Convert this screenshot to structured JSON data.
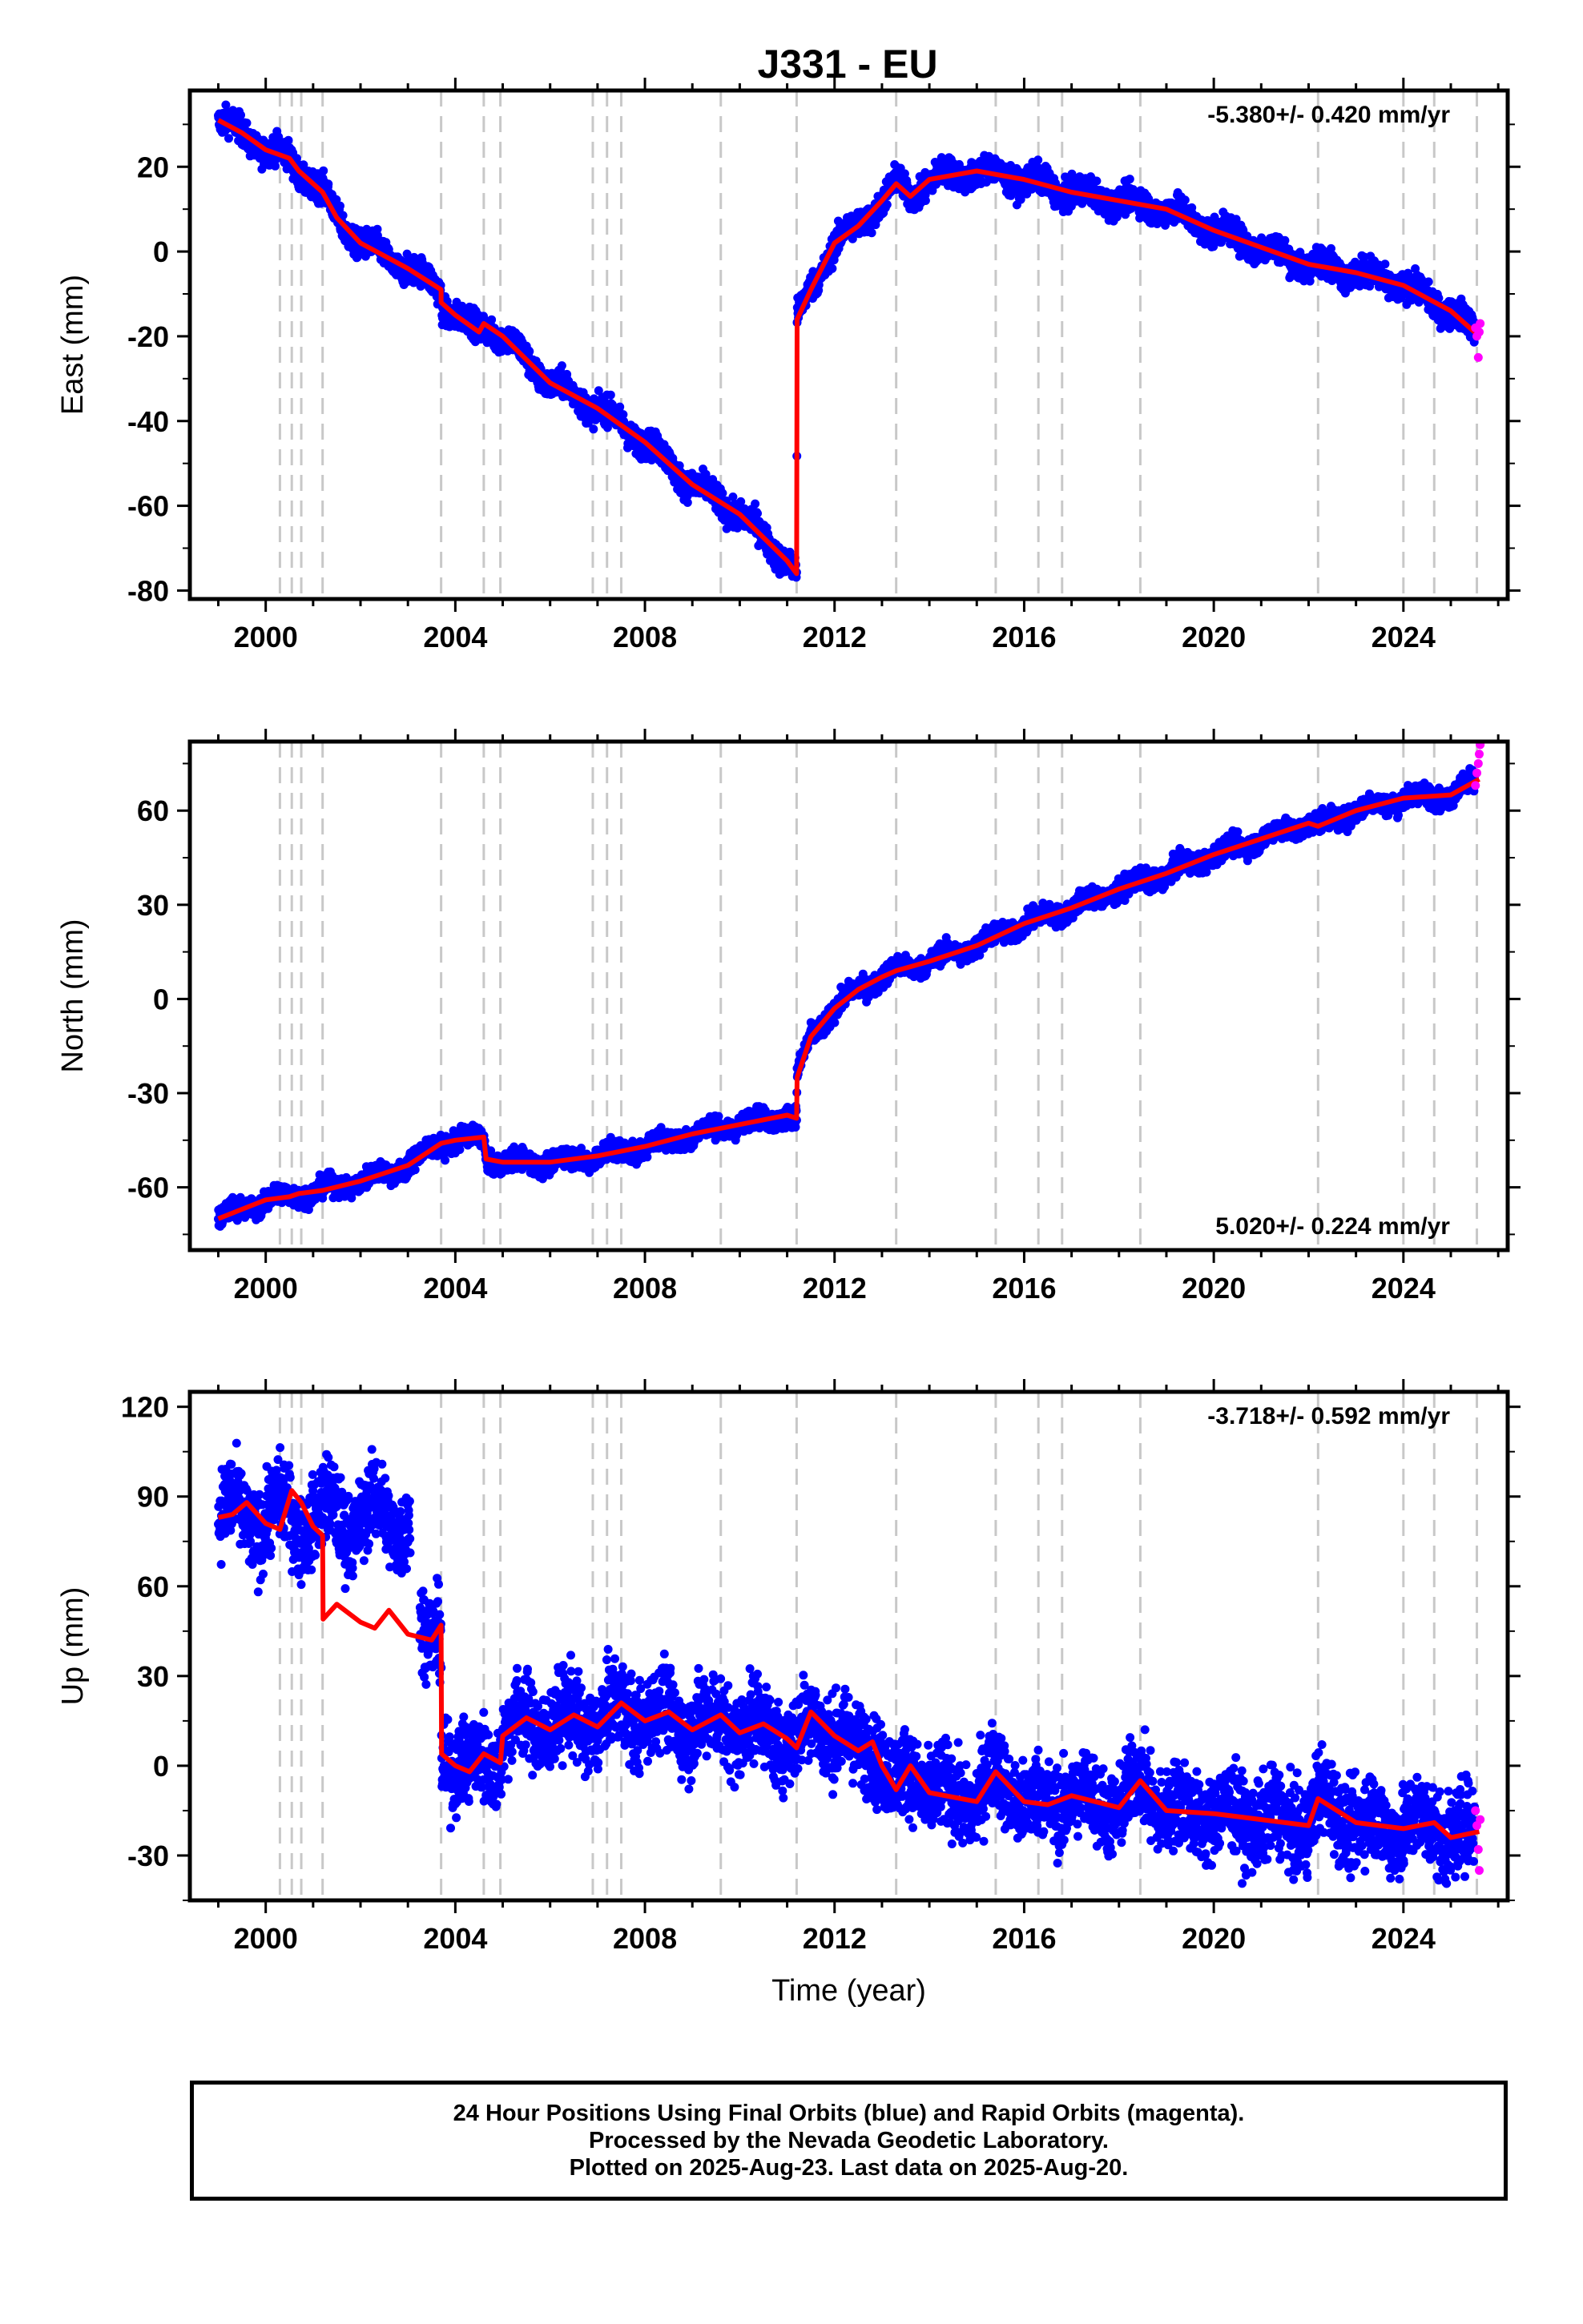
{
  "title": "J331 - EU",
  "footer": {
    "line1": "24 Hour Positions Using Final Orbits (blue) and Rapid Orbits (magenta).",
    "line2": "Processed by the Nevada Geodetic Laboratory.",
    "line3": "Plotted on 2025-Aug-23. Last data on 2025-Aug-20."
  },
  "colors": {
    "final": "#0000ff",
    "rapid": "#ff00ff",
    "model": "#ff0000",
    "event": "#c8c8c8"
  },
  "chart_data": [
    {
      "type": "scatter",
      "ylabel": "East (mm)",
      "rate_label": "-5.380+/- 0.420 mm/yr",
      "xlim": [
        1998.4,
        2026.2
      ],
      "ylim": [
        -82,
        38
      ],
      "yticks": [
        -80,
        -60,
        -40,
        -20,
        0,
        20
      ],
      "xticks": [
        2000,
        2004,
        2008,
        2012,
        2016,
        2020,
        2024
      ],
      "event_lines": [
        2000.3,
        2000.55,
        2000.75,
        2001.2,
        2003.7,
        2004.6,
        2004.95,
        2006.9,
        2007.2,
        2007.5,
        2009.6,
        2011.2,
        2013.3,
        2015.4,
        2016.3,
        2016.8,
        2018.45,
        2022.2,
        2024.0,
        2024.65,
        2025.55
      ],
      "model": [
        [
          1999.0,
          31
        ],
        [
          1999.5,
          28
        ],
        [
          2000.0,
          24
        ],
        [
          2000.5,
          22
        ],
        [
          2000.7,
          19
        ],
        [
          2001.2,
          14
        ],
        [
          2001.5,
          8
        ],
        [
          2002.0,
          2
        ],
        [
          2002.5,
          -1
        ],
        [
          2003.0,
          -4
        ],
        [
          2003.7,
          -9
        ],
        [
          2003.7,
          -12
        ],
        [
          2004.0,
          -15
        ],
        [
          2004.5,
          -19
        ],
        [
          2004.6,
          -17
        ],
        [
          2005.0,
          -20
        ],
        [
          2006.0,
          -31
        ],
        [
          2007.0,
          -37
        ],
        [
          2008.0,
          -45
        ],
        [
          2009.0,
          -55
        ],
        [
          2010.0,
          -62
        ],
        [
          2011.0,
          -73
        ],
        [
          2011.2,
          -76
        ],
        [
          2011.21,
          -16
        ],
        [
          2011.5,
          -9
        ],
        [
          2012.0,
          2
        ],
        [
          2012.5,
          6
        ],
        [
          2013.0,
          12
        ],
        [
          2013.3,
          16
        ],
        [
          2013.6,
          13
        ],
        [
          2014.0,
          17
        ],
        [
          2015.0,
          19
        ],
        [
          2016.0,
          17
        ],
        [
          2017.0,
          14
        ],
        [
          2018.0,
          12
        ],
        [
          2019.0,
          10
        ],
        [
          2020.0,
          5
        ],
        [
          2021.0,
          1
        ],
        [
          2022.0,
          -3
        ],
        [
          2023.0,
          -5
        ],
        [
          2024.0,
          -8
        ],
        [
          2025.0,
          -14
        ],
        [
          2025.6,
          -20
        ]
      ],
      "series": [
        {
          "name": "Final Orbits",
          "color": "#0000ff"
        },
        {
          "name": "Rapid Orbits",
          "color": "#ff00ff",
          "x": [
            2025.52,
            2025.55,
            2025.58,
            2025.6,
            2025.62
          ],
          "values": [
            -18,
            -20,
            -25,
            -19,
            -17
          ]
        }
      ]
    },
    {
      "type": "scatter",
      "ylabel": "North (mm)",
      "rate_label": "5.020+/- 0.224 mm/yr",
      "xlim": [
        1998.4,
        2026.2
      ],
      "ylim": [
        -80,
        82
      ],
      "yticks": [
        -60,
        -30,
        0,
        30,
        60
      ],
      "xticks": [
        2000,
        2004,
        2008,
        2012,
        2016,
        2020,
        2024
      ],
      "event_lines": [
        2000.3,
        2000.55,
        2000.75,
        2001.2,
        2003.7,
        2004.6,
        2004.95,
        2006.9,
        2007.2,
        2007.5,
        2009.6,
        2011.2,
        2013.3,
        2015.4,
        2016.3,
        2016.8,
        2018.45,
        2022.2,
        2024.0,
        2024.65,
        2025.55
      ],
      "model": [
        [
          1999.0,
          -70
        ],
        [
          1999.5,
          -67
        ],
        [
          2000.0,
          -64
        ],
        [
          2000.5,
          -63
        ],
        [
          2000.7,
          -62
        ],
        [
          2001.2,
          -61
        ],
        [
          2002.0,
          -58
        ],
        [
          2003.0,
          -53
        ],
        [
          2003.7,
          -46
        ],
        [
          2004.0,
          -45
        ],
        [
          2004.6,
          -44
        ],
        [
          2004.65,
          -51
        ],
        [
          2005.0,
          -52
        ],
        [
          2006.0,
          -52
        ],
        [
          2007.0,
          -50
        ],
        [
          2008.0,
          -47
        ],
        [
          2009.0,
          -43
        ],
        [
          2010.0,
          -40
        ],
        [
          2011.0,
          -37
        ],
        [
          2011.2,
          -38
        ],
        [
          2011.21,
          -25
        ],
        [
          2011.5,
          -12
        ],
        [
          2012.0,
          -3
        ],
        [
          2012.5,
          3
        ],
        [
          2013.0,
          7
        ],
        [
          2013.3,
          9
        ],
        [
          2014.0,
          12
        ],
        [
          2015.0,
          17
        ],
        [
          2016.0,
          24
        ],
        [
          2017.0,
          29
        ],
        [
          2018.0,
          35
        ],
        [
          2019.0,
          40
        ],
        [
          2020.0,
          46
        ],
        [
          2021.0,
          51
        ],
        [
          2022.0,
          56
        ],
        [
          2022.2,
          55
        ],
        [
          2023.0,
          60
        ],
        [
          2024.0,
          64
        ],
        [
          2025.0,
          65
        ],
        [
          2025.6,
          70
        ]
      ],
      "series": [
        {
          "name": "Final Orbits",
          "color": "#0000ff"
        },
        {
          "name": "Rapid Orbits",
          "color": "#ff00ff",
          "x": [
            2025.52,
            2025.55,
            2025.58,
            2025.6,
            2025.62
          ],
          "values": [
            68,
            72,
            75,
            78,
            81
          ]
        }
      ]
    },
    {
      "type": "scatter",
      "ylabel": "Up (mm)",
      "xlabel": "Time (year)",
      "rate_label": "-3.718+/- 0.592 mm/yr",
      "xlim": [
        1998.4,
        2026.2
      ],
      "ylim": [
        -45,
        125
      ],
      "yticks": [
        -30,
        0,
        30,
        60,
        90,
        120
      ],
      "xticks": [
        2000,
        2004,
        2008,
        2012,
        2016,
        2020,
        2024
      ],
      "event_lines": [
        2000.3,
        2000.55,
        2000.75,
        2001.2,
        2003.7,
        2004.6,
        2004.95,
        2006.9,
        2007.2,
        2007.5,
        2009.6,
        2011.2,
        2013.3,
        2015.4,
        2016.3,
        2016.8,
        2018.45,
        2022.2,
        2024.0,
        2024.65,
        2025.55
      ],
      "model": [
        [
          1999.0,
          83
        ],
        [
          1999.3,
          84
        ],
        [
          1999.6,
          88
        ],
        [
          2000.0,
          81
        ],
        [
          2000.3,
          79
        ],
        [
          2000.55,
          92
        ],
        [
          2000.75,
          88
        ],
        [
          2001.0,
          80
        ],
        [
          2001.2,
          77
        ],
        [
          2001.21,
          49
        ],
        [
          2001.5,
          54
        ],
        [
          2002.0,
          48
        ],
        [
          2002.3,
          46
        ],
        [
          2002.6,
          52
        ],
        [
          2003.0,
          44
        ],
        [
          2003.5,
          42
        ],
        [
          2003.7,
          47
        ],
        [
          2003.71,
          4
        ],
        [
          2004.0,
          0
        ],
        [
          2004.3,
          -2
        ],
        [
          2004.6,
          4
        ],
        [
          2004.95,
          1
        ],
        [
          2005.0,
          10
        ],
        [
          2005.5,
          16
        ],
        [
          2006.0,
          12
        ],
        [
          2006.5,
          17
        ],
        [
          2007.0,
          13
        ],
        [
          2007.5,
          21
        ],
        [
          2008.0,
          15
        ],
        [
          2008.5,
          18
        ],
        [
          2009.0,
          12
        ],
        [
          2009.6,
          17
        ],
        [
          2010.0,
          11
        ],
        [
          2010.5,
          14
        ],
        [
          2011.0,
          9
        ],
        [
          2011.2,
          6
        ],
        [
          2011.5,
          18
        ],
        [
          2012.0,
          10
        ],
        [
          2012.5,
          5
        ],
        [
          2012.8,
          8
        ],
        [
          2013.0,
          0
        ],
        [
          2013.3,
          -8
        ],
        [
          2013.6,
          0
        ],
        [
          2014.0,
          -9
        ],
        [
          2015.0,
          -12
        ],
        [
          2015.4,
          -2
        ],
        [
          2016.0,
          -12
        ],
        [
          2016.5,
          -13
        ],
        [
          2017.0,
          -10
        ],
        [
          2018.0,
          -14
        ],
        [
          2018.45,
          -5
        ],
        [
          2019.0,
          -15
        ],
        [
          2020.0,
          -16
        ],
        [
          2021.0,
          -18
        ],
        [
          2022.0,
          -20
        ],
        [
          2022.2,
          -11
        ],
        [
          2023.0,
          -19
        ],
        [
          2024.0,
          -21
        ],
        [
          2024.65,
          -19
        ],
        [
          2025.0,
          -24
        ],
        [
          2025.6,
          -22
        ]
      ],
      "series": [
        {
          "name": "Final Orbits",
          "color": "#0000ff"
        },
        {
          "name": "Rapid Orbits",
          "color": "#ff00ff",
          "x": [
            2025.52,
            2025.55,
            2025.58,
            2025.6,
            2025.62
          ],
          "values": [
            -15,
            -20,
            -28,
            -35,
            -18
          ]
        }
      ]
    }
  ]
}
